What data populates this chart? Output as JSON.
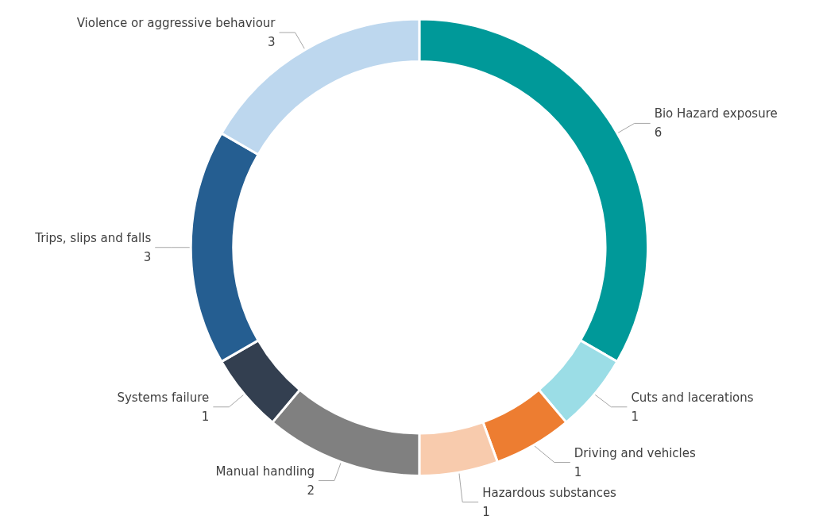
{
  "chart_data": {
    "type": "donut",
    "categories": [
      "Bio Hazard exposure",
      "Cuts and lacerations",
      "Driving and vehicles",
      "Hazardous substances",
      "Manual handling",
      "Systems failure",
      "Trips, slips and falls",
      "Violence or aggressive behaviour"
    ],
    "values": [
      6,
      1,
      1,
      1,
      2,
      1,
      3,
      3
    ],
    "colors": [
      "#009999",
      "#9bdde6",
      "#ed7d31",
      "#f8cbad",
      "#808080",
      "#333f50",
      "#255e91",
      "#bdd7ee"
    ],
    "data_labels": true,
    "legend": false
  }
}
